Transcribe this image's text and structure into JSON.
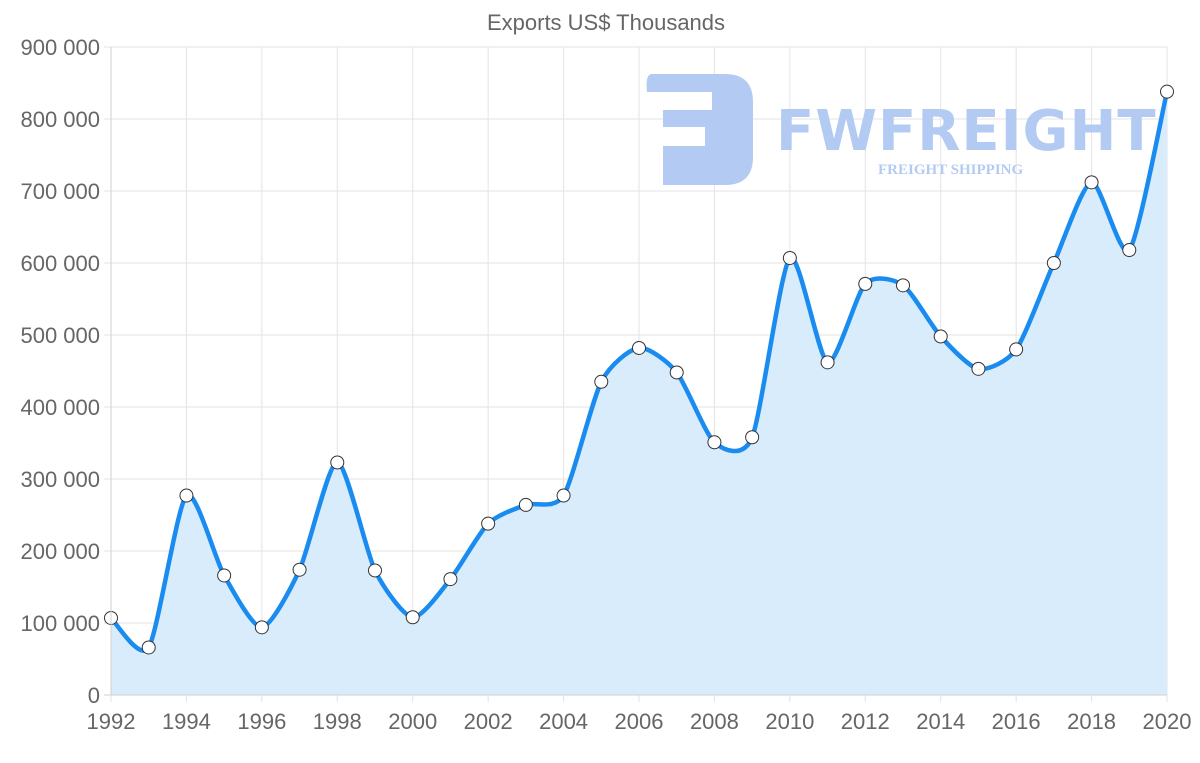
{
  "chart_data": {
    "type": "line",
    "title": "Exports US$ Thousands",
    "xlabel": "",
    "ylabel": "",
    "x": [
      1992,
      1993,
      1994,
      1995,
      1996,
      1997,
      1998,
      1999,
      2000,
      2001,
      2002,
      2003,
      2004,
      2005,
      2006,
      2007,
      2008,
      2009,
      2010,
      2011,
      2012,
      2013,
      2014,
      2015,
      2016,
      2017,
      2018,
      2019,
      2020
    ],
    "series": [
      {
        "name": "Exports US$ Thousands",
        "values": [
          107000,
          66000,
          277000,
          166000,
          94000,
          174000,
          323000,
          173000,
          108000,
          161000,
          238000,
          264000,
          277000,
          435000,
          482000,
          448000,
          351000,
          358000,
          607000,
          462000,
          571000,
          569000,
          498000,
          453000,
          480000,
          600000,
          712000,
          618000,
          838000
        ],
        "color": "#1a8cf0",
        "fill": "#d9ecfc"
      }
    ],
    "ylim": [
      0,
      900000
    ],
    "yticks": [
      0,
      100000,
      200000,
      300000,
      400000,
      500000,
      600000,
      700000,
      800000,
      900000
    ],
    "ytick_labels": [
      "0",
      "100 000",
      "200 000",
      "300 000",
      "400 000",
      "500 000",
      "600 000",
      "700 000",
      "800 000",
      "900 000"
    ],
    "xticks": [
      1992,
      1994,
      1996,
      1998,
      2000,
      2002,
      2004,
      2006,
      2008,
      2010,
      2012,
      2014,
      2016,
      2018,
      2020
    ],
    "xtick_labels": [
      "1992",
      "1994",
      "1996",
      "1998",
      "2000",
      "2002",
      "2004",
      "2006",
      "2008",
      "2010",
      "2012",
      "2014",
      "2016",
      "2018",
      "2020"
    ],
    "grid": true,
    "legend": "none",
    "area_fill": true,
    "markers": "circle"
  },
  "watermark": {
    "brand": "FWFREIGHT",
    "tagline": "FREIGHT SHIPPING",
    "color": "#b3cbf2"
  }
}
